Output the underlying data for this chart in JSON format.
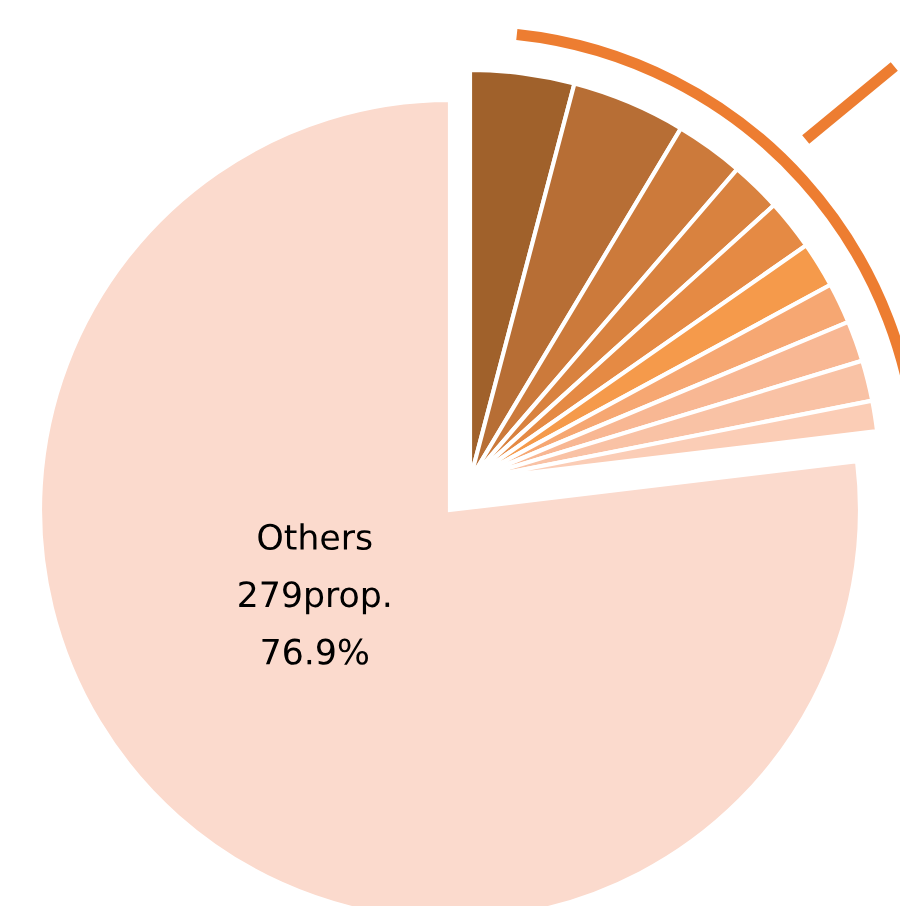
{
  "chart_data": {
    "type": "pie",
    "categories": [
      null,
      null,
      null,
      null,
      null,
      null,
      null,
      null,
      null,
      null,
      "Others"
    ],
    "values": [
      4.1,
      4.5,
      2.7,
      2.0,
      2.0,
      1.8,
      1.6,
      1.6,
      1.6,
      1.2,
      76.9
    ],
    "colors": [
      "#a0612b",
      "#b76e35",
      "#cc7a3b",
      "#d9823f",
      "#e58a44",
      "#f59a4b",
      "#f6a772",
      "#f8b793",
      "#f9c2a5",
      "#fbcdb6",
      "#fbdacd"
    ],
    "value_labels": [
      null,
      null,
      null,
      null,
      null,
      null,
      null,
      null,
      null,
      null,
      "279prop.\n76.9%"
    ]
  }
}
